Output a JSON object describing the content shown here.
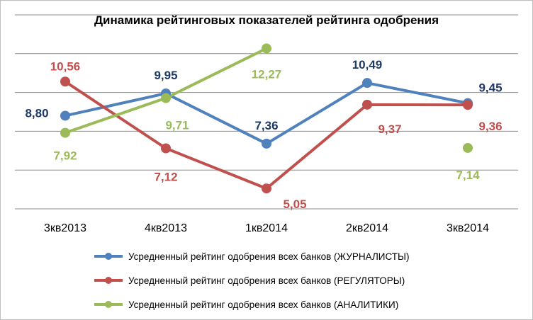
{
  "chart_data": {
    "type": "line",
    "title": "Динамика рейтинговых показателей рейтинга одобрения",
    "categories": [
      "3кв2013",
      "4кв2013",
      "1кв2014",
      "2кв2014",
      "3кв2014"
    ],
    "series": [
      {
        "name": "Усредненный рейтинг одобрения  всех банков (ЖУРНАЛИСТЫ)",
        "color": "#4f81bd",
        "values": [
          8.8,
          9.95,
          7.36,
          10.49,
          9.45
        ],
        "labels": [
          "8,80",
          "9,95",
          "7,36",
          "10,49",
          "9,45"
        ],
        "label_color": "#1f3864"
      },
      {
        "name": "Усредненный рейтинг одобрения всех банков (РЕГУЛЯТОРЫ)",
        "color": "#c0504d",
        "values": [
          10.56,
          7.12,
          5.05,
          9.37,
          9.36
        ],
        "labels": [
          "10,56",
          "7,12",
          "5,05",
          "9,37",
          "9,36"
        ],
        "label_color": "#c0504d"
      },
      {
        "name": "Усредненный рейтинг одобрения всех банков (АНАЛИТИКИ)",
        "color": "#9bbb59",
        "values": [
          7.92,
          9.71,
          12.27,
          null,
          7.14
        ],
        "labels": [
          "7,92",
          "9,71",
          "12,27",
          "",
          "7,14"
        ],
        "label_color": "#9bbb59"
      }
    ],
    "ylim": [
      4,
      14
    ],
    "grid": true,
    "legend_position": "bottom"
  }
}
